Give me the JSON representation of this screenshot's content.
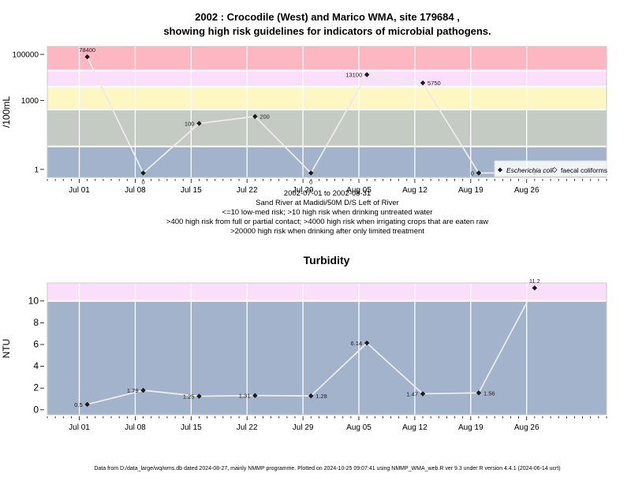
{
  "chart_data": [
    {
      "type": "line",
      "title_line1": "2002 : Crocodile (West) and Marico WMA, site 179684 ,",
      "title_line2": "showing high risk guidelines for indicators of microbial pathogens.",
      "ylabel": "/100mL",
      "y_scale": "log",
      "y_ticks": [
        {
          "value": 1,
          "label": "1"
        },
        {
          "value": 1000,
          "label": "1000"
        },
        {
          "value": 100000,
          "label": "100000"
        }
      ],
      "x_ticks": [
        "Jul 01",
        "Jul 08",
        "Jul 15",
        "Jul 22",
        "Jul 29",
        "Aug 05",
        "Aug 12",
        "Aug 19",
        "Aug 26"
      ],
      "x_tick_dates": [
        "2002-07-01",
        "2002-07-08",
        "2002-07-15",
        "2002-07-22",
        "2002-07-29",
        "2002-08-05",
        "2002-08-12",
        "2002-08-19",
        "2002-08-26"
      ],
      "xlim": [
        "2002-06-27",
        "2002-09-05"
      ],
      "ylim": [
        0.45,
        220000
      ],
      "bands": [
        {
          "from": 0.45,
          "to": 10,
          "color": "#a3b3cb"
        },
        {
          "from": 10,
          "to": 400,
          "color": "#c3cbc3"
        },
        {
          "from": 400,
          "to": 4000,
          "color": "#fef7c3"
        },
        {
          "from": 4000,
          "to": 20000,
          "color": "#f9dff9"
        },
        {
          "from": 20000,
          "to": 220000,
          "color": "#fdb7c3"
        }
      ],
      "band_lines": [
        10,
        400,
        4000,
        20000
      ],
      "series": [
        {
          "name": "Escherichia coli",
          "points": [
            {
              "date": "2002-07-02",
              "value": 78400,
              "label": "78400",
              "label_pos": "above"
            },
            {
              "date": "2002-07-09",
              "value": 0,
              "label": "0",
              "label_pos": "below"
            },
            {
              "date": "2002-07-16",
              "value": 100,
              "label": "100",
              "label_pos": "left"
            },
            {
              "date": "2002-07-23",
              "value": 200,
              "label": "200",
              "label_pos": "right"
            },
            {
              "date": "2002-07-30",
              "value": 0,
              "label": "0",
              "label_pos": "below"
            },
            {
              "date": "2002-08-06",
              "value": 13100,
              "label": "13100",
              "label_pos": "left"
            },
            {
              "date": "2002-08-13",
              "value": 5750,
              "label": "5750",
              "label_pos": "right"
            },
            {
              "date": "2002-08-20",
              "value": 0,
              "label": "0",
              "label_pos": "left"
            },
            {
              "date": "2002-08-27",
              "value": 0,
              "label": "0",
              "label_pos": "right"
            }
          ]
        }
      ],
      "legend": {
        "placement": "bottom-right",
        "entries": [
          {
            "name": "Escherichia coli",
            "marker": "filled-diamond"
          },
          {
            "name": "faecal coliforms",
            "marker": "open-diamond"
          }
        ]
      },
      "notes": [
        "2002-07-01 to 2002-08-31",
        "Sand River at Madidi/50M D/S Left of River",
        "<=10 low-med risk; >10 high risk when drinking untreated water",
        ">400 high risk from full or partial contact; >4000 high risk when irrigating crops that are eaten raw",
        ">20000 high risk when drinking after only limited treatment"
      ]
    },
    {
      "type": "line",
      "title": "Turbidity",
      "ylabel": "NTU",
      "y_ticks": [
        0,
        2,
        4,
        6,
        8,
        10
      ],
      "x_ticks": [
        "Jul 01",
        "Jul 08",
        "Jul 15",
        "Jul 22",
        "Jul 29",
        "Aug 05",
        "Aug 12",
        "Aug 19",
        "Aug 26"
      ],
      "x_tick_dates": [
        "2002-07-01",
        "2002-07-08",
        "2002-07-15",
        "2002-07-22",
        "2002-07-29",
        "2002-08-05",
        "2002-08-12",
        "2002-08-19",
        "2002-08-26"
      ],
      "xlim": [
        "2002-06-27",
        "2002-09-05"
      ],
      "ylim": [
        -0.45,
        11.65
      ],
      "bands": [
        {
          "from": -0.45,
          "to": 10,
          "color": "#a3b3cb"
        },
        {
          "from": 10,
          "to": 11.65,
          "color": "#f9dff9"
        }
      ],
      "band_lines": [
        10
      ],
      "series": [
        {
          "name": "Turbidity",
          "points": [
            {
              "date": "2002-07-02",
              "value": 0.5,
              "label": "0.5",
              "label_pos": "left"
            },
            {
              "date": "2002-07-09",
              "value": 1.79,
              "label": "1.79",
              "label_pos": "left"
            },
            {
              "date": "2002-07-16",
              "value": 1.25,
              "label": "1.25",
              "label_pos": "left"
            },
            {
              "date": "2002-07-23",
              "value": 1.31,
              "label": "1.31",
              "label_pos": "left"
            },
            {
              "date": "2002-07-30",
              "value": 1.28,
              "label": "1.28",
              "label_pos": "right"
            },
            {
              "date": "2002-08-06",
              "value": 6.14,
              "label": "6.14",
              "label_pos": "left"
            },
            {
              "date": "2002-08-13",
              "value": 1.47,
              "label": "1.47",
              "label_pos": "left"
            },
            {
              "date": "2002-08-20",
              "value": 1.56,
              "label": "1.56",
              "label_pos": "right"
            },
            {
              "date": "2002-08-27",
              "value": 11.2,
              "label": "11.2",
              "label_pos": "above"
            }
          ]
        }
      ]
    }
  ],
  "footer": "Data from D:/data_large/wq/wms.db dated 2024-08-27, mainly NMMP programme. Plotted on 2024-10-25 09:07:41 using NMMP_WMA_web.R ver 9.3 under R version 4.4.1 (2024-06-14 ucrt)"
}
